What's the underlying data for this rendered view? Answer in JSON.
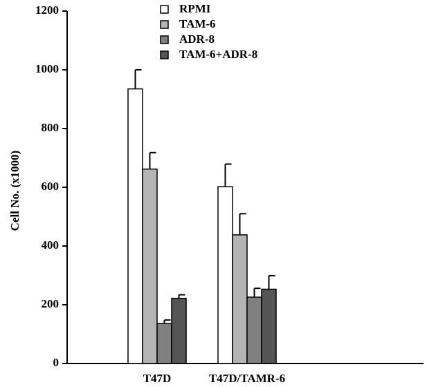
{
  "chart_data": {
    "type": "bar",
    "title": "",
    "xlabel": "",
    "ylabel": "Cell No. (x1000)",
    "ylim": [
      0,
      1200
    ],
    "yticks": [
      0,
      200,
      400,
      600,
      800,
      1000,
      1200
    ],
    "categories": [
      "T47D",
      "T47D/TAMR-6"
    ],
    "series": [
      {
        "name": "RPMI",
        "values": [
          935,
          602
        ],
        "errors": [
          65,
          77
        ],
        "color": "#ffffff"
      },
      {
        "name": "TAM-6",
        "values": [
          662,
          438
        ],
        "errors": [
          56,
          72
        ],
        "color": "#b4b4b4"
      },
      {
        "name": "ADR-8",
        "values": [
          136,
          226
        ],
        "errors": [
          12,
          30
        ],
        "color": "#808080"
      },
      {
        "name": "TAM-6+ADR-8",
        "values": [
          222,
          253
        ],
        "errors": [
          12,
          46
        ],
        "color": "#555555"
      }
    ],
    "legend_position": "top-center",
    "grid": false
  }
}
